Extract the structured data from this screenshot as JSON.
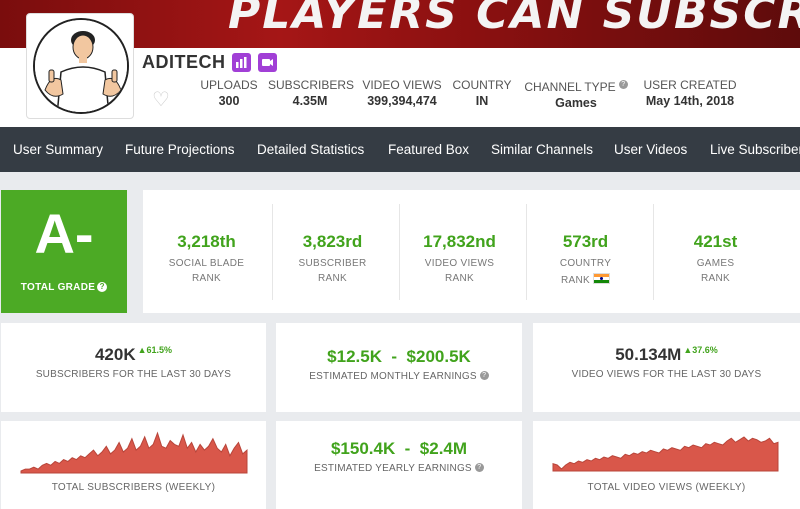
{
  "banner": {
    "text": "PLAYERS CAN SUBSCRI"
  },
  "channel": {
    "name": "ADITECH",
    "stats": [
      {
        "label": "UPLOADS",
        "value": "300"
      },
      {
        "label": "SUBSCRIBERS",
        "value": "4.35M"
      },
      {
        "label": "VIDEO VIEWS",
        "value": "399,394,474"
      },
      {
        "label": "COUNTRY",
        "value": "IN"
      },
      {
        "label": "CHANNEL TYPE",
        "value": "Games"
      },
      {
        "label": "USER CREATED",
        "value": "May 14th, 2018"
      }
    ],
    "help_glyph": "?"
  },
  "nav": {
    "items": [
      "User Summary",
      "Future Projections",
      "Detailed Statistics",
      "Featured Box",
      "Similar Channels",
      "User Videos",
      "Live Subscriber"
    ]
  },
  "grade": {
    "value": "A-",
    "label": "TOTAL GRADE",
    "help_glyph": "?",
    "color": "#4caa25"
  },
  "ranks": [
    {
      "value": "3,218th",
      "line1": "SOCIAL BLADE",
      "line2": "RANK"
    },
    {
      "value": "3,823rd",
      "line1": "SUBSCRIBER",
      "line2": "RANK"
    },
    {
      "value": "17,832nd",
      "line1": "VIDEO VIEWS",
      "line2": "RANK"
    },
    {
      "value": "573rd",
      "line1": "COUNTRY",
      "line2": "RANK"
    },
    {
      "value": "421st",
      "line1": "GAMES",
      "line2": "RANK"
    }
  ],
  "cards": {
    "subs30": {
      "value": "420K",
      "change": "▲61.5%",
      "label": "SUBSCRIBERS FOR THE LAST 30 DAYS"
    },
    "monthly": {
      "value": "$12.5K  -  $200.5K",
      "label": "ESTIMATED MONTHLY EARNINGS",
      "help_glyph": "?"
    },
    "views30": {
      "value": "50.134M",
      "change": "▲37.6%",
      "label": "VIDEO VIEWS FOR THE LAST 30 DAYS"
    },
    "yearly": {
      "value": "$150.4K  -  $2.4M",
      "label": "ESTIMATED YEARLY EARNINGS",
      "help_glyph": "?"
    },
    "subs_weekly": {
      "label": "TOTAL SUBSCRIBERS (WEEKLY)"
    },
    "views_weekly": {
      "label": "TOTAL VIDEO VIEWS (WEEKLY)"
    }
  },
  "sparklines": {
    "subscribers": [
      2,
      3,
      3,
      4,
      3,
      5,
      6,
      5,
      7,
      6,
      8,
      7,
      9,
      8,
      10,
      9,
      11,
      13,
      10,
      12,
      15,
      11,
      13,
      17,
      12,
      14,
      19,
      13,
      15,
      20,
      14,
      16,
      22,
      15,
      14,
      18,
      16,
      15,
      21,
      14,
      17,
      12,
      16,
      13,
      15,
      19,
      14,
      12,
      16,
      10,
      14,
      17,
      11,
      13
    ],
    "views": [
      4,
      3,
      0,
      3,
      5,
      4,
      6,
      5,
      7,
      6,
      8,
      7,
      9,
      8,
      10,
      9,
      8,
      11,
      10,
      12,
      11,
      13,
      12,
      14,
      13,
      12,
      15,
      14,
      16,
      15,
      14,
      17,
      16,
      18,
      17,
      16,
      19,
      18,
      20,
      19,
      18,
      21,
      23,
      20,
      22,
      24,
      21,
      23,
      22,
      20,
      21,
      23,
      19,
      20
    ],
    "color": "#d9574a"
  },
  "colors": {
    "accent_green": "#41a31c",
    "nav_bg": "#353c44",
    "badge_purple": "#a13fd6"
  }
}
